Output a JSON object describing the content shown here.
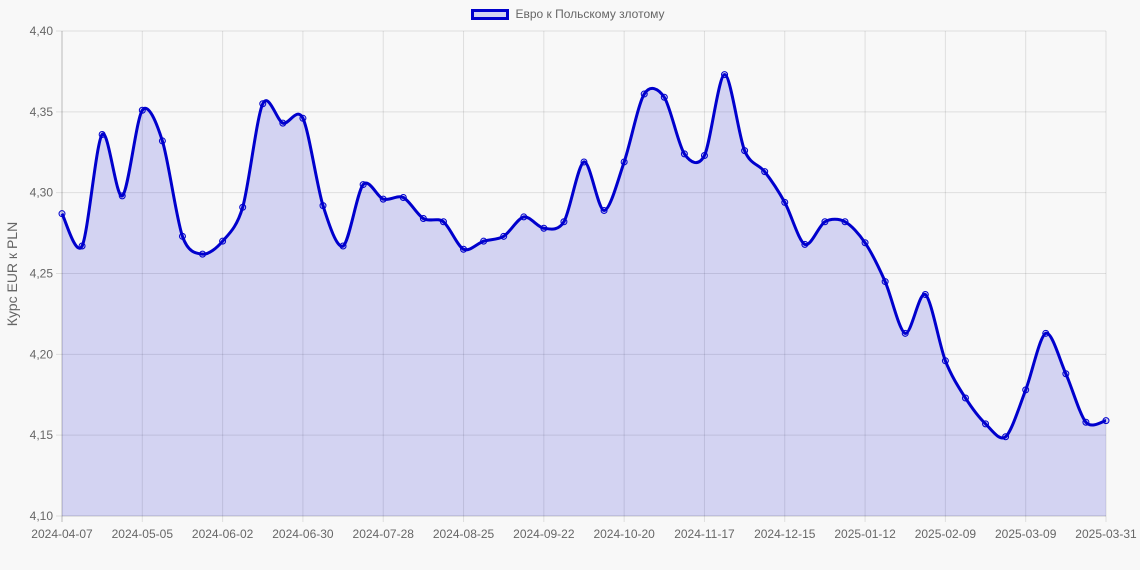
{
  "legend": {
    "label": "Евро к Польскому злотому",
    "border_color": "#0000cd",
    "fill_color": "rgba(0,0,205,0.15)"
  },
  "chart_data": {
    "type": "line",
    "title": "",
    "legend": [
      "Евро к Польскому злотому"
    ],
    "legend_position": "top",
    "xlabel": "",
    "ylabel": "Курс EUR к PLN",
    "ylim": [
      4.1,
      4.4
    ],
    "yticks": [
      "4,10",
      "4,15",
      "4,20",
      "4,25",
      "4,30",
      "4,35",
      "4,40"
    ],
    "xticks": [
      "2024-04-07",
      "2024-05-05",
      "2024-06-02",
      "2024-06-30",
      "2024-07-28",
      "2024-08-25",
      "2024-09-22",
      "2024-10-20",
      "2024-11-17",
      "2024-12-15",
      "2025-01-12",
      "2025-02-09",
      "2025-03-09",
      "2025-03-31"
    ],
    "grid": true,
    "fill": true,
    "series": [
      {
        "name": "Евро к Польскому злотому",
        "color": "#0000cd",
        "values": [
          4.287,
          4.267,
          4.336,
          4.298,
          4.351,
          4.332,
          4.273,
          4.262,
          4.27,
          4.291,
          4.355,
          4.343,
          4.346,
          4.292,
          4.267,
          4.305,
          4.296,
          4.297,
          4.284,
          4.282,
          4.265,
          4.27,
          4.273,
          4.285,
          4.278,
          4.282,
          4.319,
          4.289,
          4.319,
          4.361,
          4.359,
          4.324,
          4.323,
          4.373,
          4.326,
          4.313,
          4.294,
          4.268,
          4.282,
          4.282,
          4.269,
          4.245,
          4.213,
          4.237,
          4.196,
          4.173,
          4.157,
          4.149,
          4.178,
          4.213,
          4.188,
          4.158,
          4.159
        ]
      }
    ]
  }
}
